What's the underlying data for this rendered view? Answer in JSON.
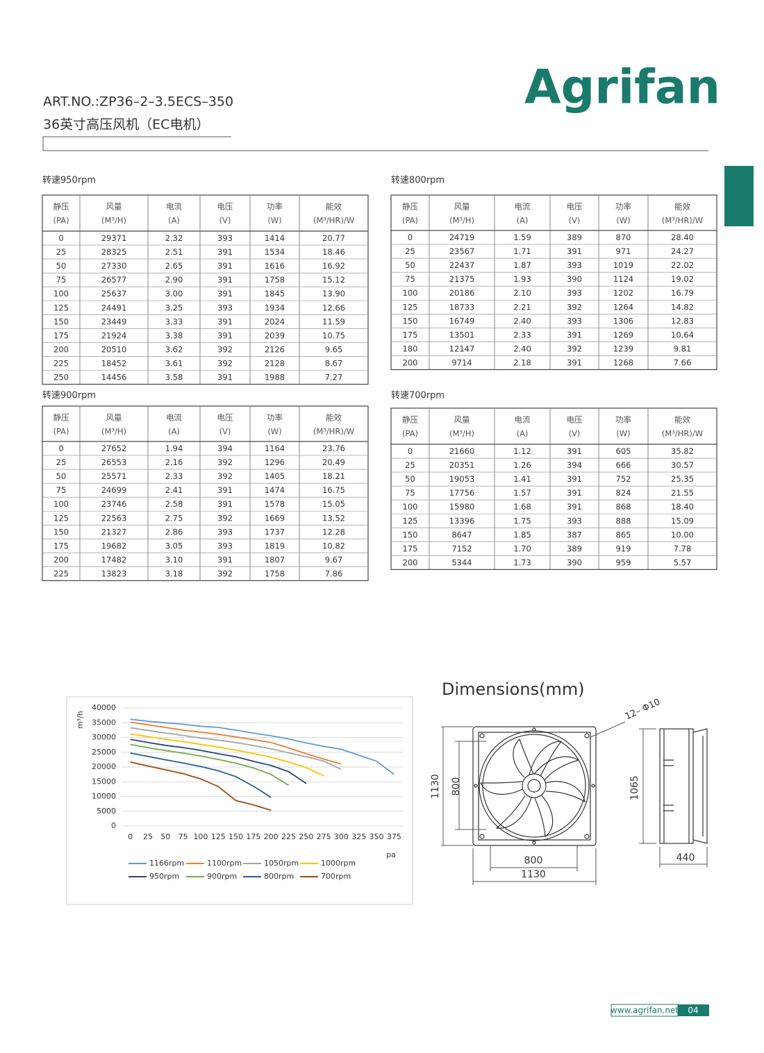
{
  "header": {
    "logo": "Agrifan",
    "art_no": "ART.NO.:ZP36–2–3.5ECS–350",
    "subtitle": "36英寸高压风机（EC电机）"
  },
  "tables": [
    {
      "title": "转速950rpm",
      "header": [
        [
          "静压",
          "(PA)"
        ],
        [
          "风量",
          "(M³/H)"
        ],
        [
          "电流",
          "(A)"
        ],
        [
          "电压",
          "(V)"
        ],
        [
          "功率",
          "(W)"
        ],
        [
          "能效",
          "(M³/HR)/W"
        ]
      ],
      "rows": [
        [
          "0",
          "29371",
          "2.32",
          "393",
          "1414",
          "20.77"
        ],
        [
          "25",
          "28325",
          "2.51",
          "391",
          "1534",
          "18.46"
        ],
        [
          "50",
          "27330",
          "2.65",
          "391",
          "1616",
          "16.92"
        ],
        [
          "75",
          "26577",
          "2.90",
          "391",
          "1758",
          "15.12"
        ],
        [
          "100",
          "25637",
          "3.00",
          "391",
          "1845",
          "13.90"
        ],
        [
          "125",
          "24491",
          "3.25",
          "393",
          "1934",
          "12.66"
        ],
        [
          "150",
          "23449",
          "3.33",
          "391",
          "2024",
          "11.59"
        ],
        [
          "175",
          "21924",
          "3.38",
          "391",
          "2039",
          "10.75"
        ],
        [
          "200",
          "20510",
          "3.62",
          "392",
          "2126",
          "9.65"
        ],
        [
          "225",
          "18452",
          "3.61",
          "392",
          "2128",
          "8.67"
        ],
        [
          "250",
          "14456",
          "3.58",
          "391",
          "1988",
          "7.27"
        ]
      ]
    },
    {
      "title": "转速800rpm",
      "header": [
        [
          "静压",
          "(PA)"
        ],
        [
          "风量",
          "(M³/H)"
        ],
        [
          "电流",
          "(A)"
        ],
        [
          "电压",
          "(V)"
        ],
        [
          "功率",
          "(W)"
        ],
        [
          "能效",
          "(M³/HR)/W"
        ]
      ],
      "rows": [
        [
          "0",
          "24719",
          "1.59",
          "389",
          "870",
          "28.40"
        ],
        [
          "25",
          "23567",
          "1.71",
          "391",
          "971",
          "24.27"
        ],
        [
          "50",
          "22437",
          "1.87",
          "393",
          "1019",
          "22.02"
        ],
        [
          "75",
          "21375",
          "1.93",
          "390",
          "1124",
          "19.02"
        ],
        [
          "100",
          "20186",
          "2.10",
          "393",
          "1202",
          "16.79"
        ],
        [
          "125",
          "18733",
          "2.21",
          "392",
          "1264",
          "14.82"
        ],
        [
          "150",
          "16749",
          "2.40",
          "393",
          "1306",
          "12.83"
        ],
        [
          "175",
          "13501",
          "2.33",
          "391",
          "1269",
          "10.64"
        ],
        [
          "180",
          "12147",
          "2.40",
          "392",
          "1239",
          "9.81"
        ],
        [
          "200",
          "9714",
          "2.18",
          "391",
          "1268",
          "7.66"
        ]
      ]
    },
    {
      "title": "转速900rpm",
      "header": [
        [
          "静压",
          "(PA)"
        ],
        [
          "风量",
          "(M³/H)"
        ],
        [
          "电流",
          "(A)"
        ],
        [
          "电压",
          "(V)"
        ],
        [
          "功率",
          "(W)"
        ],
        [
          "能效",
          "(M³/HR)/W"
        ]
      ],
      "rows": [
        [
          "0",
          "27652",
          "1.94",
          "394",
          "1164",
          "23.76"
        ],
        [
          "25",
          "26553",
          "2.16",
          "392",
          "1296",
          "20.49"
        ],
        [
          "50",
          "25571",
          "2.33",
          "392",
          "1405",
          "18.21"
        ],
        [
          "75",
          "24699",
          "2.41",
          "391",
          "1474",
          "16.75"
        ],
        [
          "100",
          "23746",
          "2.58",
          "391",
          "1578",
          "15.05"
        ],
        [
          "125",
          "22563",
          "2.75",
          "392",
          "1669",
          "13.52"
        ],
        [
          "150",
          "21327",
          "2.86",
          "393",
          "1737",
          "12.28"
        ],
        [
          "175",
          "19682",
          "3.05",
          "393",
          "1819",
          "10.82"
        ],
        [
          "200",
          "17482",
          "3.10",
          "391",
          "1807",
          "9.67"
        ],
        [
          "225",
          "13823",
          "3.18",
          "392",
          "1758",
          "7.86"
        ]
      ]
    },
    {
      "title": "转速700rpm",
      "header": [
        [
          "静压",
          "(PA)"
        ],
        [
          "风量",
          "(M³/H)"
        ],
        [
          "电流",
          "(A)"
        ],
        [
          "电压",
          "(V)"
        ],
        [
          "功率",
          "(W)"
        ],
        [
          "能效",
          "(M³/HR)/W"
        ]
      ],
      "rows": [
        [
          "0",
          "21660",
          "1.12",
          "391",
          "605",
          "35.82"
        ],
        [
          "25",
          "20351",
          "1.26",
          "394",
          "666",
          "30.57"
        ],
        [
          "50",
          "19053",
          "1.41",
          "391",
          "752",
          "25.35"
        ],
        [
          "75",
          "17756",
          "1.57",
          "391",
          "824",
          "21.55"
        ],
        [
          "100",
          "15980",
          "1.68",
          "391",
          "868",
          "18.40"
        ],
        [
          "125",
          "13396",
          "1.75",
          "393",
          "888",
          "15.09"
        ],
        [
          "150",
          "8647",
          "1.85",
          "387",
          "865",
          "10.00"
        ],
        [
          "175",
          "7152",
          "1.70",
          "389",
          "919",
          "7.78"
        ],
        [
          "200",
          "5344",
          "1.73",
          "390",
          "959",
          "5.57"
        ]
      ]
    }
  ],
  "chart_data": {
    "type": "line",
    "y_label": "m³/h",
    "x_label": "pa",
    "categories": [
      0,
      25,
      50,
      75,
      100,
      125,
      150,
      175,
      200,
      225,
      250,
      275,
      300,
      325,
      350,
      375
    ],
    "ylim": [
      0,
      40000
    ],
    "yticks": [
      0,
      5000,
      10000,
      15000,
      20000,
      25000,
      30000,
      35000,
      40000
    ],
    "grid": true,
    "legend": "bottom",
    "series": [
      {
        "name": "1166rpm",
        "color": "#5b9bd5",
        "values": [
          36200,
          35500,
          35000,
          34500,
          33800,
          33400,
          32500,
          31500,
          30600,
          29500,
          28200,
          27000,
          26000,
          24000,
          22000,
          17500
        ]
      },
      {
        "name": "1100rpm",
        "color": "#ed7d31",
        "values": [
          35200,
          34300,
          33400,
          32500,
          31800,
          31100,
          30200,
          29300,
          28300,
          26500,
          24500,
          22700,
          21000,
          null,
          null,
          null
        ]
      },
      {
        "name": "1050rpm",
        "color": "#a5a5a5",
        "values": [
          33300,
          32400,
          31500,
          30700,
          29800,
          29100,
          28300,
          27300,
          26200,
          24800,
          23500,
          22000,
          19200,
          null,
          null,
          null
        ]
      },
      {
        "name": "1000rpm",
        "color": "#ffc000",
        "values": [
          31200,
          30300,
          29400,
          28600,
          27700,
          26800,
          25700,
          24600,
          23300,
          21700,
          19800,
          17000,
          null,
          null,
          null,
          null
        ]
      },
      {
        "name": "950rpm",
        "color": "#264478",
        "values": [
          29371,
          28325,
          27330,
          26577,
          25637,
          24491,
          23449,
          21924,
          20510,
          18452,
          14456,
          null,
          null,
          null,
          null,
          null
        ]
      },
      {
        "name": "900rpm",
        "color": "#70ad47",
        "values": [
          27652,
          26553,
          25571,
          24699,
          23746,
          22563,
          21327,
          19682,
          17482,
          13823,
          null,
          null,
          null,
          null,
          null,
          null
        ]
      },
      {
        "name": "800rpm",
        "color": "#255e91",
        "values": [
          24719,
          23567,
          22437,
          21375,
          20186,
          18733,
          16749,
          13501,
          9714,
          null,
          null,
          null,
          null,
          null,
          null,
          null
        ]
      },
      {
        "name": "700rpm",
        "color": "#9e480e",
        "values": [
          21660,
          20351,
          19053,
          17756,
          15980,
          13396,
          8647,
          7152,
          5344,
          null,
          null,
          null,
          null,
          null,
          null,
          null
        ]
      }
    ]
  },
  "dimensions": {
    "title": "Dimensions(mm)",
    "hole": "12– Φ10",
    "height_outer": "1130",
    "height_inner": "800",
    "side_height": "1065",
    "width_inner": "800",
    "width_outer": "1130",
    "depth": "440"
  },
  "footer": {
    "url": "www.agrifan.net",
    "page": "04"
  }
}
